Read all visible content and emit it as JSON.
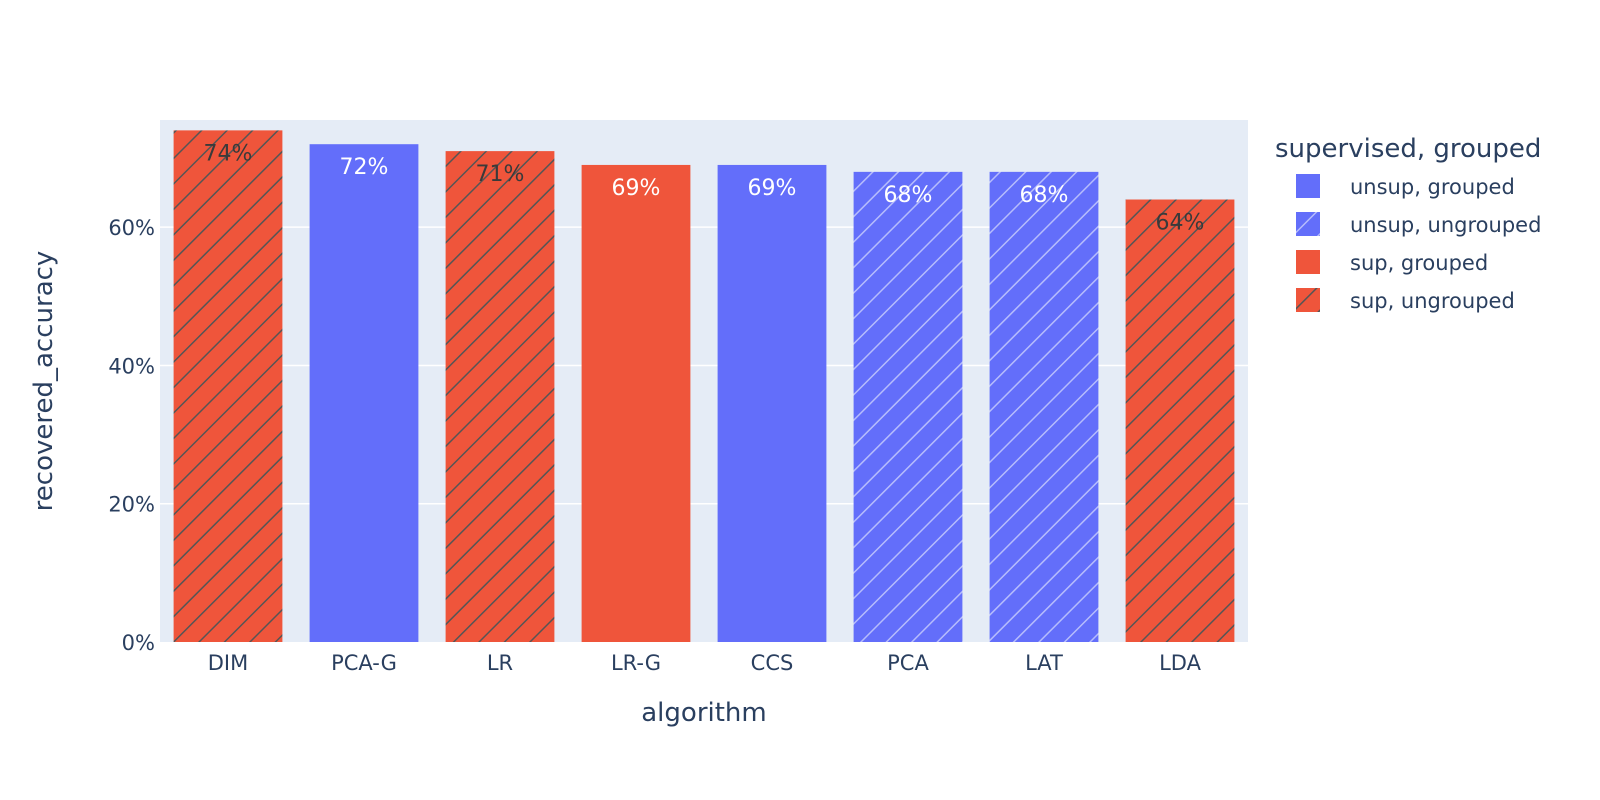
{
  "chart_data": {
    "type": "bar",
    "categories": [
      "DIM",
      "PCA-G",
      "LR",
      "LR-G",
      "CCS",
      "PCA",
      "LAT",
      "LDA"
    ],
    "values": [
      74,
      72,
      71,
      69,
      69,
      68,
      68,
      64
    ],
    "bar_labels": [
      "74%",
      "72%",
      "71%",
      "69%",
      "69%",
      "68%",
      "68%",
      "64%"
    ],
    "bar_groups": [
      "sup, ungrouped",
      "unsup, grouped",
      "sup, ungrouped",
      "sup, grouped",
      "unsup, grouped",
      "unsup, ungrouped",
      "unsup, ungrouped",
      "sup, ungrouped"
    ],
    "xlabel": "algorithm",
    "ylabel": "recovered_accuracy",
    "ylim": [
      0,
      75.5
    ],
    "yticks": [
      0,
      20,
      40,
      60
    ],
    "ytick_labels": [
      "0%",
      "20%",
      "40%",
      "60%"
    ],
    "grid": true,
    "legend": {
      "title": "supervised, grouped",
      "placement": "right",
      "items": [
        {
          "label": "unsup, grouped",
          "color": "#636efa",
          "hatched": false
        },
        {
          "label": "unsup, ungrouped",
          "color": "#636efa",
          "hatched": true
        },
        {
          "label": "sup, grouped",
          "color": "#ef553b",
          "hatched": false
        },
        {
          "label": "sup, ungrouped",
          "color": "#ef553b",
          "hatched": true
        }
      ]
    },
    "colors": {
      "plot_background": "#e5ecf6",
      "gridline": "#ffffff",
      "text": "#2a3f5f"
    }
  }
}
